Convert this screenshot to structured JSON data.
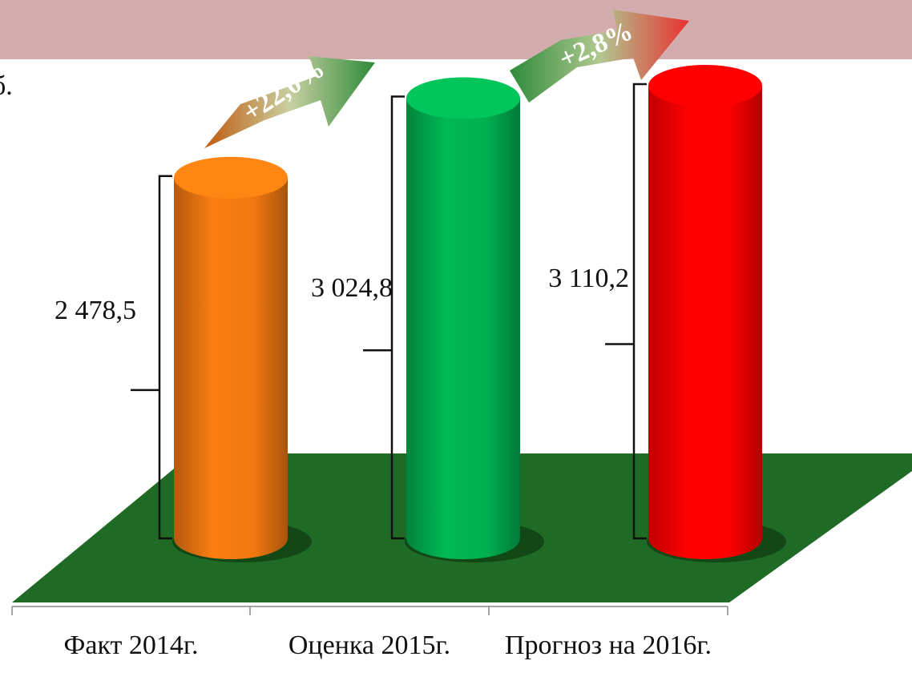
{
  "chart_data": {
    "type": "bar3d",
    "annotations": [
      "б.",
      "+22,0%",
      "+2,8%"
    ],
    "categories": [
      "Факт 2014г.",
      "Оценка 2015г.",
      "Прогноз на 2016г."
    ],
    "values": [
      2478.5,
      3024.8,
      3110.2
    ],
    "value_labels": [
      "2 478,5",
      "3 024,8",
      "3 110,2"
    ],
    "colors": [
      "#f07810",
      "#00b050",
      "#ff0000"
    ]
  }
}
